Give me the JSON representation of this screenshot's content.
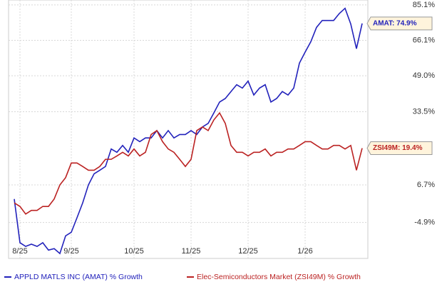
{
  "chart_data": {
    "type": "line",
    "categories": [
      null,
      "8/25",
      null,
      null,
      null,
      null,
      null,
      null,
      null,
      null,
      "9/25",
      null,
      null,
      null,
      null,
      null,
      null,
      null,
      null,
      null,
      null,
      "10/25",
      null,
      null,
      null,
      null,
      null,
      null,
      null,
      null,
      null,
      "11/25",
      null,
      null,
      null,
      null,
      null,
      null,
      null,
      null,
      null,
      "12/25",
      null,
      null,
      null,
      null,
      null,
      null,
      null,
      null,
      null,
      "1/26",
      null,
      null,
      null,
      null,
      null,
      null,
      null,
      null,
      null,
      null
    ],
    "series": [
      {
        "name": "APPLD MATLS INC (AMAT) % Growth",
        "color": "#2222bb",
        "last_label": "AMAT: 74.9%",
        "values": [
          2.2,
          -10.6,
          -11.6,
          -11.0,
          -11.6,
          -10.6,
          -12.6,
          -12.2,
          -13.5,
          -8.7,
          -7.7,
          -3.5,
          1.0,
          6.7,
          10.4,
          11.6,
          12.9,
          19.1,
          17.9,
          20.4,
          17.9,
          23.2,
          21.8,
          23.2,
          23.2,
          26.0,
          23.2,
          26.0,
          23.2,
          24.5,
          24.5,
          26.0,
          24.5,
          27.4,
          28.8,
          33.0,
          37.5,
          39.0,
          42.0,
          45.0,
          43.5,
          46.6,
          40.5,
          43.5,
          45.0,
          37.5,
          39.0,
          42.0,
          40.5,
          43.5,
          54.9,
          60.2,
          65.4,
          72.8,
          76.5,
          76.5,
          76.5,
          80.3,
          83.2,
          74.6,
          61.9,
          74.9
        ]
      },
      {
        "name": "Elec-Semiconductors Market (ZSI49M) % Growth",
        "color": "#bb2222",
        "last_label": "ZSI49M: 19.4%",
        "values": [
          1.0,
          -0.1,
          -2.4,
          -1.3,
          -1.3,
          -0.1,
          -0.1,
          2.2,
          6.7,
          9.1,
          14.1,
          14.1,
          12.9,
          11.6,
          11.6,
          12.9,
          15.4,
          15.4,
          16.6,
          17.9,
          16.6,
          19.1,
          16.6,
          17.9,
          24.5,
          26.0,
          21.8,
          19.1,
          17.9,
          15.4,
          12.9,
          15.4,
          26.0,
          27.4,
          26.0,
          30.2,
          33.0,
          28.8,
          20.4,
          17.9,
          17.9,
          16.6,
          17.9,
          17.9,
          19.1,
          16.6,
          17.9,
          17.9,
          19.1,
          19.1,
          20.4,
          21.8,
          21.8,
          20.4,
          19.1,
          19.1,
          20.4,
          20.4,
          19.1,
          20.4,
          11.6,
          19.4
        ]
      }
    ],
    "ylim": [
      -14.8,
      87.9
    ],
    "yticks": [
      {
        "value": 85.1,
        "label": "85.1%"
      },
      {
        "value": 66.1,
        "label": "66.1%"
      },
      {
        "value": 49.0,
        "label": "49.0%"
      },
      {
        "value": 33.5,
        "label": "33.5%"
      },
      {
        "value": 6.7,
        "label": "6.7%"
      },
      {
        "value": -4.9,
        "label": "-4.9%"
      }
    ],
    "log_scale": true,
    "grid": true,
    "legend": "bottom"
  }
}
